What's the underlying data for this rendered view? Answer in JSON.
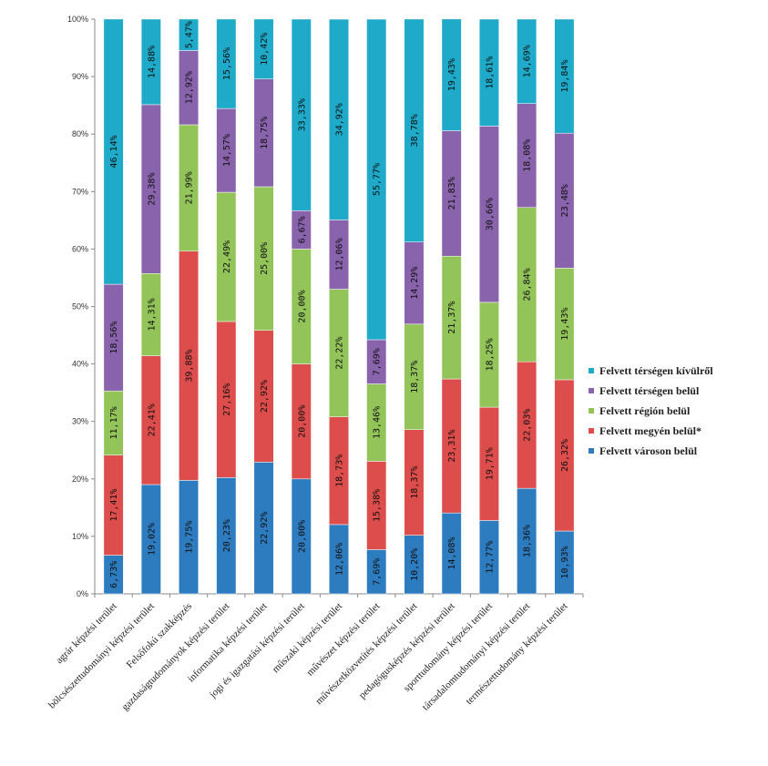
{
  "chart_data": {
    "type": "bar",
    "stacked": true,
    "percent_stacked": true,
    "title": "",
    "xlabel": "",
    "ylabel": "",
    "ylim": [
      0,
      100
    ],
    "y_ticks": [
      "0%",
      "10%",
      "20%",
      "30%",
      "40%",
      "50%",
      "60%",
      "70%",
      "80%",
      "90%",
      "100%"
    ],
    "grid": false,
    "legend_position": "right",
    "categories": [
      "agrár képzési terület",
      "bölcsészettudományi képzési terület",
      "Felsőfokú szakképzés",
      "gazdaságtudományok képzési terület",
      "informatika képzési terület",
      "jogi és igazgatási képzési terület",
      "műszaki képzési terület",
      "művészet képzési terület",
      "művészetközvetítés képzési terület",
      "pedagógusképzés képzési terület",
      "sporttudomány képzési terület",
      "társadalomtudományi képzési terület",
      "természettudomány képzési terület"
    ],
    "series": [
      {
        "name": "Felvett városon belül",
        "color": "#2e7cc0",
        "values": [
          6.73,
          19.02,
          19.75,
          20.23,
          22.92,
          20.0,
          12.06,
          7.69,
          10.2,
          14.08,
          12.77,
          18.36,
          10.93
        ],
        "labels": [
          "6,73%",
          "19,02%",
          "19,75%",
          "20,23%",
          "22,92%",
          "20,00%",
          "12,06%",
          "7,69%",
          "10,20%",
          "14,08%",
          "12,77%",
          "18,36%",
          "10,93%"
        ]
      },
      {
        "name": "Felvett megyén belül*",
        "color": "#dd4d4b",
        "values": [
          17.41,
          22.41,
          39.88,
          27.16,
          22.92,
          20.0,
          18.73,
          15.38,
          18.37,
          23.31,
          19.71,
          22.03,
          26.32
        ],
        "labels": [
          "17,41%",
          "22,41%",
          "39,88%",
          "27,16%",
          "22,92%",
          "20,00%",
          "18,73%",
          "15,38%",
          "18,37%",
          "23,31%",
          "19,71%",
          "22,03%",
          "26,32%"
        ]
      },
      {
        "name": "Felvett régión belül",
        "color": "#93c45a",
        "values": [
          11.17,
          14.31,
          21.99,
          22.49,
          25.0,
          20.0,
          22.22,
          13.46,
          18.37,
          21.37,
          18.25,
          26.84,
          19.43
        ],
        "labels": [
          "11,17%",
          "14,31%",
          "21,99%",
          "22,49%",
          "25,00%",
          "20,00%",
          "22,22%",
          "13,46%",
          "18,37%",
          "21,37%",
          "18,25%",
          "26,84%",
          "19,43%"
        ]
      },
      {
        "name": "Felvett térségen belül",
        "color": "#8a63ad",
        "values": [
          18.56,
          29.38,
          12.92,
          14.57,
          18.75,
          6.67,
          12.06,
          7.69,
          14.29,
          21.83,
          30.66,
          18.08,
          23.48
        ],
        "labels": [
          "18,56%",
          "29,38%",
          "12,92%",
          "14,57%",
          "18,75%",
          "6,67%",
          "12,06%",
          "7,69%",
          "14,29%",
          "21,83%",
          "30,66%",
          "18,08%",
          "23,48%"
        ]
      },
      {
        "name": "Felvett térségen kívülről",
        "color": "#1eaac8",
        "values": [
          46.14,
          14.88,
          5.47,
          15.56,
          10.42,
          33.33,
          34.92,
          55.77,
          38.78,
          19.43,
          18.61,
          14.69,
          19.84
        ],
        "labels": [
          "46,14%",
          "14,88%",
          "5,47%",
          "15,56%",
          "10,42%",
          "33,33%",
          "34,92%",
          "55,77%",
          "38,78%",
          "19,43%",
          "18,61%",
          "14,69%",
          "19,84%"
        ]
      }
    ]
  }
}
